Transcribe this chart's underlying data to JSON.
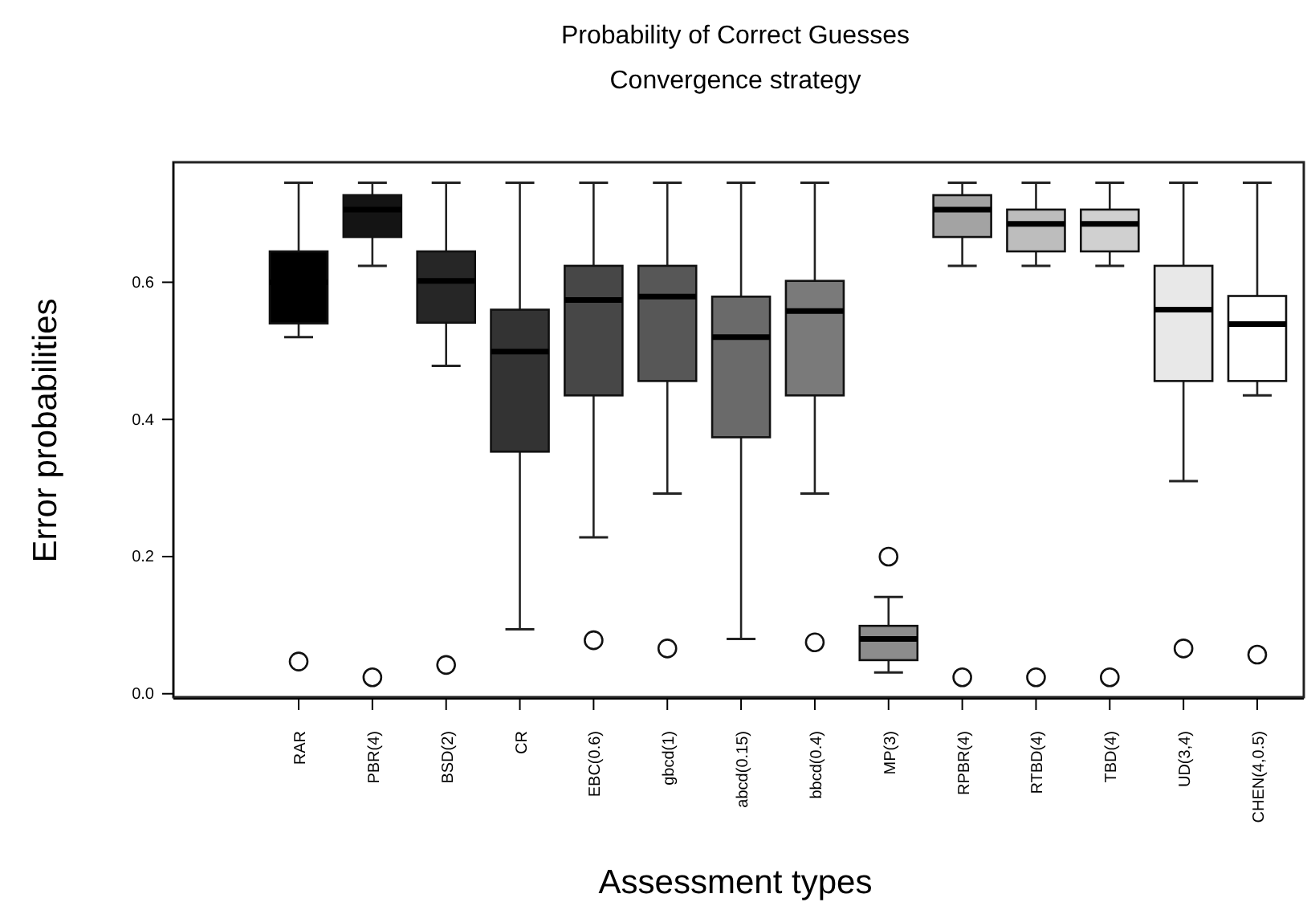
{
  "chart_data": {
    "type": "box",
    "title": "Probability of Correct Guesses",
    "subtitle": "Convergence strategy",
    "xlabel": "Assessment types",
    "ylabel": "Error probabilities",
    "categories": [
      "RAR",
      "PBR(4)",
      "BSD(2)",
      "CR",
      "EBC(0.6)",
      "gbcd(1)",
      "abcd(0.15)",
      "bbcd(0.4)",
      "MP(3)",
      "RPBR(4)",
      "RTBD(4)",
      "TBD(4)",
      "UD(3,4)",
      "CHEN(4,0.5)"
    ],
    "colors": [
      "#000000",
      "#141414",
      "#262626",
      "#333333",
      "#474747",
      "#575757",
      "#6a6a6a",
      "#7a7a7a",
      "#8c8c8c",
      "#a3a3a3",
      "#bdbdbd",
      "#d0d0d0",
      "#e8e8e8",
      "#ffffff"
    ],
    "boxes": [
      {
        "low": 0.52,
        "q1": 0.54,
        "median": 0.6,
        "q3": 0.645,
        "high": 0.745,
        "outliers": [
          0.047
        ]
      },
      {
        "low": 0.624,
        "q1": 0.666,
        "median": 0.706,
        "q3": 0.727,
        "high": 0.745,
        "outliers": [
          0.024
        ]
      },
      {
        "low": 0.478,
        "q1": 0.541,
        "median": 0.602,
        "q3": 0.645,
        "high": 0.745,
        "outliers": [
          0.042
        ]
      },
      {
        "low": 0.094,
        "q1": 0.353,
        "median": 0.499,
        "q3": 0.56,
        "high": 0.745
      },
      {
        "low": 0.228,
        "q1": 0.435,
        "median": 0.574,
        "q3": 0.624,
        "high": 0.745,
        "outliers": [
          0.078
        ]
      },
      {
        "low": 0.292,
        "q1": 0.456,
        "median": 0.579,
        "q3": 0.624,
        "high": 0.745,
        "outliers": [
          0.066
        ]
      },
      {
        "low": 0.08,
        "q1": 0.374,
        "median": 0.52,
        "q3": 0.579,
        "high": 0.745
      },
      {
        "low": 0.292,
        "q1": 0.435,
        "median": 0.558,
        "q3": 0.602,
        "high": 0.745,
        "outliers": [
          0.075
        ]
      },
      {
        "low": 0.031,
        "q1": 0.049,
        "median": 0.08,
        "q3": 0.099,
        "high": 0.141,
        "outliers": [
          0.2
        ]
      },
      {
        "low": 0.624,
        "q1": 0.666,
        "median": 0.706,
        "q3": 0.727,
        "high": 0.745,
        "outliers": [
          0.024
        ]
      },
      {
        "low": 0.624,
        "q1": 0.645,
        "median": 0.685,
        "q3": 0.706,
        "high": 0.745,
        "outliers": [
          0.024
        ]
      },
      {
        "low": 0.624,
        "q1": 0.645,
        "median": 0.685,
        "q3": 0.706,
        "high": 0.745,
        "outliers": [
          0.024
        ]
      },
      {
        "low": 0.31,
        "q1": 0.456,
        "median": 0.56,
        "q3": 0.624,
        "high": 0.745,
        "outliers": [
          0.066
        ]
      },
      {
        "low": 0.435,
        "q1": 0.456,
        "median": 0.539,
        "q3": 0.58,
        "high": 0.745,
        "outliers": [
          0.057
        ]
      }
    ],
    "ylim": [
      -0.005,
      0.775
    ],
    "yticks": [
      {
        "value": 0,
        "label": "0.0"
      },
      {
        "value": 0.2,
        "label": "0.2"
      },
      {
        "value": 0.4,
        "label": "0.4"
      },
      {
        "value": 0.6,
        "label": "0.6"
      }
    ],
    "grid": false
  }
}
